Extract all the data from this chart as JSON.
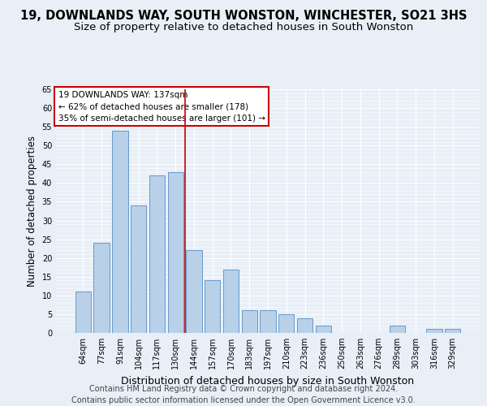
{
  "title": "19, DOWNLANDS WAY, SOUTH WONSTON, WINCHESTER, SO21 3HS",
  "subtitle": "Size of property relative to detached houses in South Wonston",
  "xlabel": "Distribution of detached houses by size in South Wonston",
  "ylabel": "Number of detached properties",
  "categories": [
    "64sqm",
    "77sqm",
    "91sqm",
    "104sqm",
    "117sqm",
    "130sqm",
    "144sqm",
    "157sqm",
    "170sqm",
    "183sqm",
    "197sqm",
    "210sqm",
    "223sqm",
    "236sqm",
    "250sqm",
    "263sqm",
    "276sqm",
    "289sqm",
    "303sqm",
    "316sqm",
    "329sqm"
  ],
  "values": [
    11,
    24,
    54,
    34,
    42,
    43,
    22,
    14,
    17,
    6,
    6,
    5,
    4,
    2,
    0,
    0,
    0,
    2,
    0,
    1,
    1
  ],
  "bar_color": "#b8d0e8",
  "bar_edge_color": "#6699cc",
  "property_label": "19 DOWNLANDS WAY: 137sqm",
  "annotation_line1": "← 62% of detached houses are smaller (178)",
  "annotation_line2": "35% of semi-detached houses are larger (101) →",
  "vline_index": 5.5,
  "annotation_box_facecolor": "#ffffff",
  "annotation_box_edgecolor": "#cc0000",
  "vline_color": "#cc0000",
  "ylim": [
    0,
    65
  ],
  "yticks": [
    0,
    5,
    10,
    15,
    20,
    25,
    30,
    35,
    40,
    45,
    50,
    55,
    60,
    65
  ],
  "footer_line1": "Contains HM Land Registry data © Crown copyright and database right 2024.",
  "footer_line2": "Contains public sector information licensed under the Open Government Licence v3.0.",
  "background_color": "#e8eff7",
  "grid_color": "#ffffff",
  "title_fontsize": 10.5,
  "subtitle_fontsize": 9.5,
  "xlabel_fontsize": 9,
  "ylabel_fontsize": 8.5,
  "tick_fontsize": 7,
  "annotation_fontsize": 7.5,
  "footer_fontsize": 7
}
